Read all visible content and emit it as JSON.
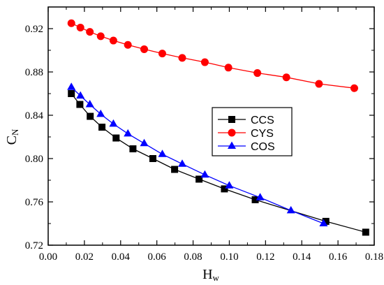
{
  "chart_data": {
    "type": "line",
    "title": "",
    "xlabel": {
      "main": "H",
      "sub": "w"
    },
    "ylabel": {
      "main": "C",
      "sub": "N"
    },
    "xlim": [
      0.0,
      0.18
    ],
    "ylim": [
      0.72,
      0.94
    ],
    "xticks": [
      0.0,
      0.02,
      0.04,
      0.06,
      0.08,
      0.1,
      0.12,
      0.14,
      0.16,
      0.18
    ],
    "xtick_labels": [
      "0.00",
      "0.02",
      "0.04",
      "0.06",
      "0.08",
      "0.10",
      "0.12",
      "0.14",
      "0.16",
      "0.18"
    ],
    "yticks": [
      0.72,
      0.76,
      0.8,
      0.84,
      0.88,
      0.92
    ],
    "ytick_labels": [
      "0.72",
      "0.76",
      "0.80",
      "0.84",
      "0.88",
      "0.92"
    ],
    "grid": false,
    "legend_position": "center-right",
    "series": [
      {
        "name": "CCS",
        "color": "#000000",
        "marker": "square",
        "x": [
          0.0128,
          0.0175,
          0.0232,
          0.0297,
          0.0375,
          0.0468,
          0.0578,
          0.0698,
          0.0833,
          0.0973,
          0.1143,
          0.1533,
          0.1753
        ],
        "y": [
          0.86,
          0.85,
          0.839,
          0.829,
          0.819,
          0.809,
          0.8,
          0.79,
          0.781,
          0.772,
          0.762,
          0.742,
          0.732
        ]
      },
      {
        "name": "CYS",
        "color": "#ff0000",
        "marker": "circle",
        "x": [
          0.0128,
          0.0178,
          0.023,
          0.029,
          0.036,
          0.044,
          0.053,
          0.063,
          0.074,
          0.0865,
          0.0995,
          0.1155,
          0.1315,
          0.1495,
          0.169
        ],
        "y": [
          0.925,
          0.921,
          0.917,
          0.913,
          0.909,
          0.905,
          0.901,
          0.897,
          0.893,
          0.889,
          0.884,
          0.879,
          0.875,
          0.869,
          0.865
        ]
      },
      {
        "name": "COS",
        "color": "#0000ff",
        "marker": "triangle",
        "x": [
          0.0128,
          0.0178,
          0.023,
          0.029,
          0.036,
          0.044,
          0.053,
          0.063,
          0.074,
          0.0865,
          0.1,
          0.117,
          0.134,
          0.152
        ],
        "y": [
          0.866,
          0.858,
          0.85,
          0.841,
          0.832,
          0.823,
          0.814,
          0.804,
          0.795,
          0.785,
          0.775,
          0.764,
          0.752,
          0.74
        ]
      }
    ]
  }
}
